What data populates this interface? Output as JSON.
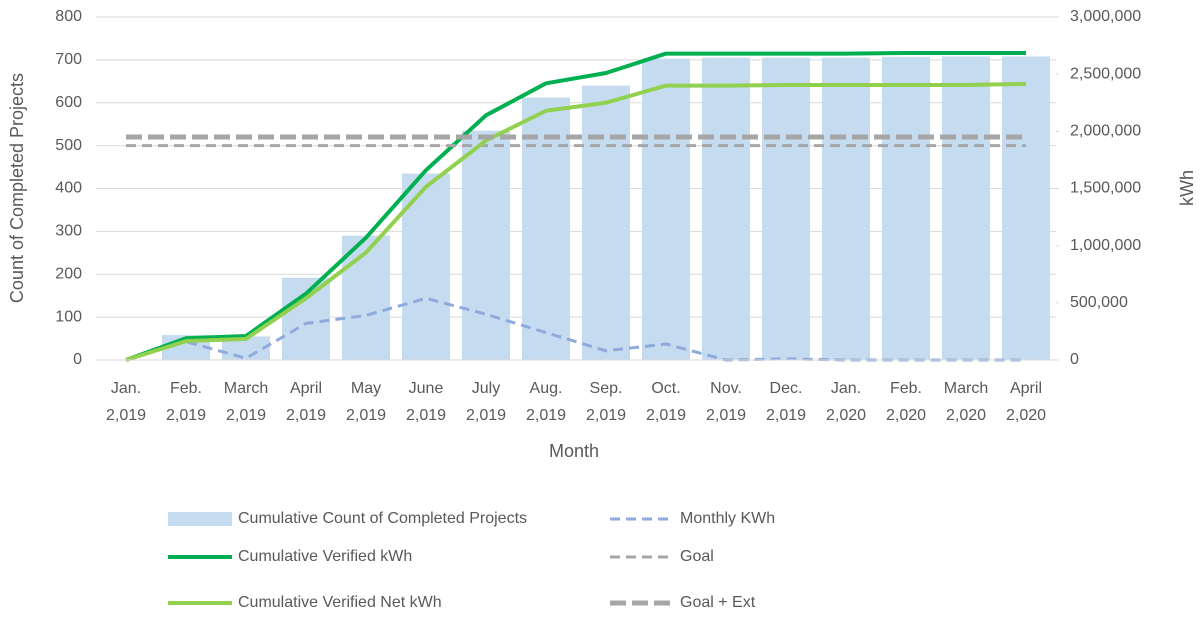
{
  "chart_data": {
    "type": "bar-line",
    "x_label": "Month",
    "y_label": "Count of Completed Projects",
    "y2_label": "kWh",
    "categories": [
      [
        "Jan.",
        "2,019"
      ],
      [
        "Feb.",
        "2,019"
      ],
      [
        "March",
        "2,019"
      ],
      [
        "April",
        "2,019"
      ],
      [
        "May",
        "2,019"
      ],
      [
        "June",
        "2,019"
      ],
      [
        "July",
        "2,019"
      ],
      [
        "Aug.",
        "2,019"
      ],
      [
        "Sep.",
        "2,019"
      ],
      [
        "Oct.",
        "2,019"
      ],
      [
        "Nov.",
        "2,019"
      ],
      [
        "Dec.",
        "2,019"
      ],
      [
        "Jan.",
        "2,020"
      ],
      [
        "Feb.",
        "2,020"
      ],
      [
        "March",
        "2,020"
      ],
      [
        "April",
        "2,020"
      ]
    ],
    "series": [
      {
        "name": "Cumulative Count of Completed Projects",
        "type": "bar",
        "color": "#c5dcf0",
        "axis": "y",
        "values": [
          0,
          58,
          55,
          192,
          290,
          435,
          535,
          612,
          640,
          703,
          705,
          705,
          705,
          707,
          708,
          708
        ]
      },
      {
        "name": "Monthly KWh",
        "type": "line",
        "line_style": "dashed",
        "color": "#8faadc",
        "axis": "y2",
        "values": [
          0,
          160000,
          15000,
          320000,
          390000,
          540000,
          400000,
          240000,
          80000,
          140000,
          0,
          10000,
          0,
          0,
          0,
          0
        ]
      },
      {
        "name": "Cumulative Verified kWh",
        "type": "line",
        "line_style": "solid",
        "color": "#00b050",
        "axis": "y2",
        "values": [
          0,
          190000,
          210000,
          580000,
          1070000,
          1660000,
          2140000,
          2420000,
          2510000,
          2680000,
          2680000,
          2680000,
          2680000,
          2685000,
          2685000,
          2685000
        ]
      },
      {
        "name": "Goal",
        "type": "line",
        "line_style": "dashed",
        "color": "#a6a6a6",
        "axis": "y",
        "values": [
          500,
          500,
          500,
          500,
          500,
          500,
          500,
          500,
          500,
          500,
          500,
          500,
          500,
          500,
          500,
          500
        ]
      },
      {
        "name": "Cumulative Verified Net kWh",
        "type": "line",
        "line_style": "solid",
        "color": "#92d050",
        "axis": "y2",
        "values": [
          0,
          165000,
          185000,
          540000,
          940000,
          1515000,
          1920000,
          2180000,
          2250000,
          2400000,
          2400000,
          2405000,
          2405000,
          2405000,
          2405000,
          2415000
        ]
      },
      {
        "name": "Goal + Ext",
        "type": "line",
        "line_style": "long-dashed",
        "color": "#a6a6a6",
        "axis": "y",
        "values": [
          520,
          520,
          520,
          520,
          520,
          520,
          520,
          520,
          520,
          520,
          520,
          520,
          520,
          520,
          520,
          520
        ]
      }
    ],
    "ylim": [
      0,
      800
    ],
    "yticks": [
      0,
      100,
      200,
      300,
      400,
      500,
      600,
      700,
      800
    ],
    "y2lim": [
      0,
      3000000
    ],
    "y2ticks": [
      0,
      {
        "value": 500000,
        "label": "500,000"
      },
      {
        "value": 1000000,
        "label": "1,000,000"
      },
      {
        "value": 1500000,
        "label": "1,500,000"
      },
      {
        "value": 2000000,
        "label": "2,000,000"
      },
      {
        "value": 2500000,
        "label": "2,500,000"
      },
      {
        "value": 3000000,
        "label": "3,000,000"
      }
    ],
    "grid": true
  }
}
